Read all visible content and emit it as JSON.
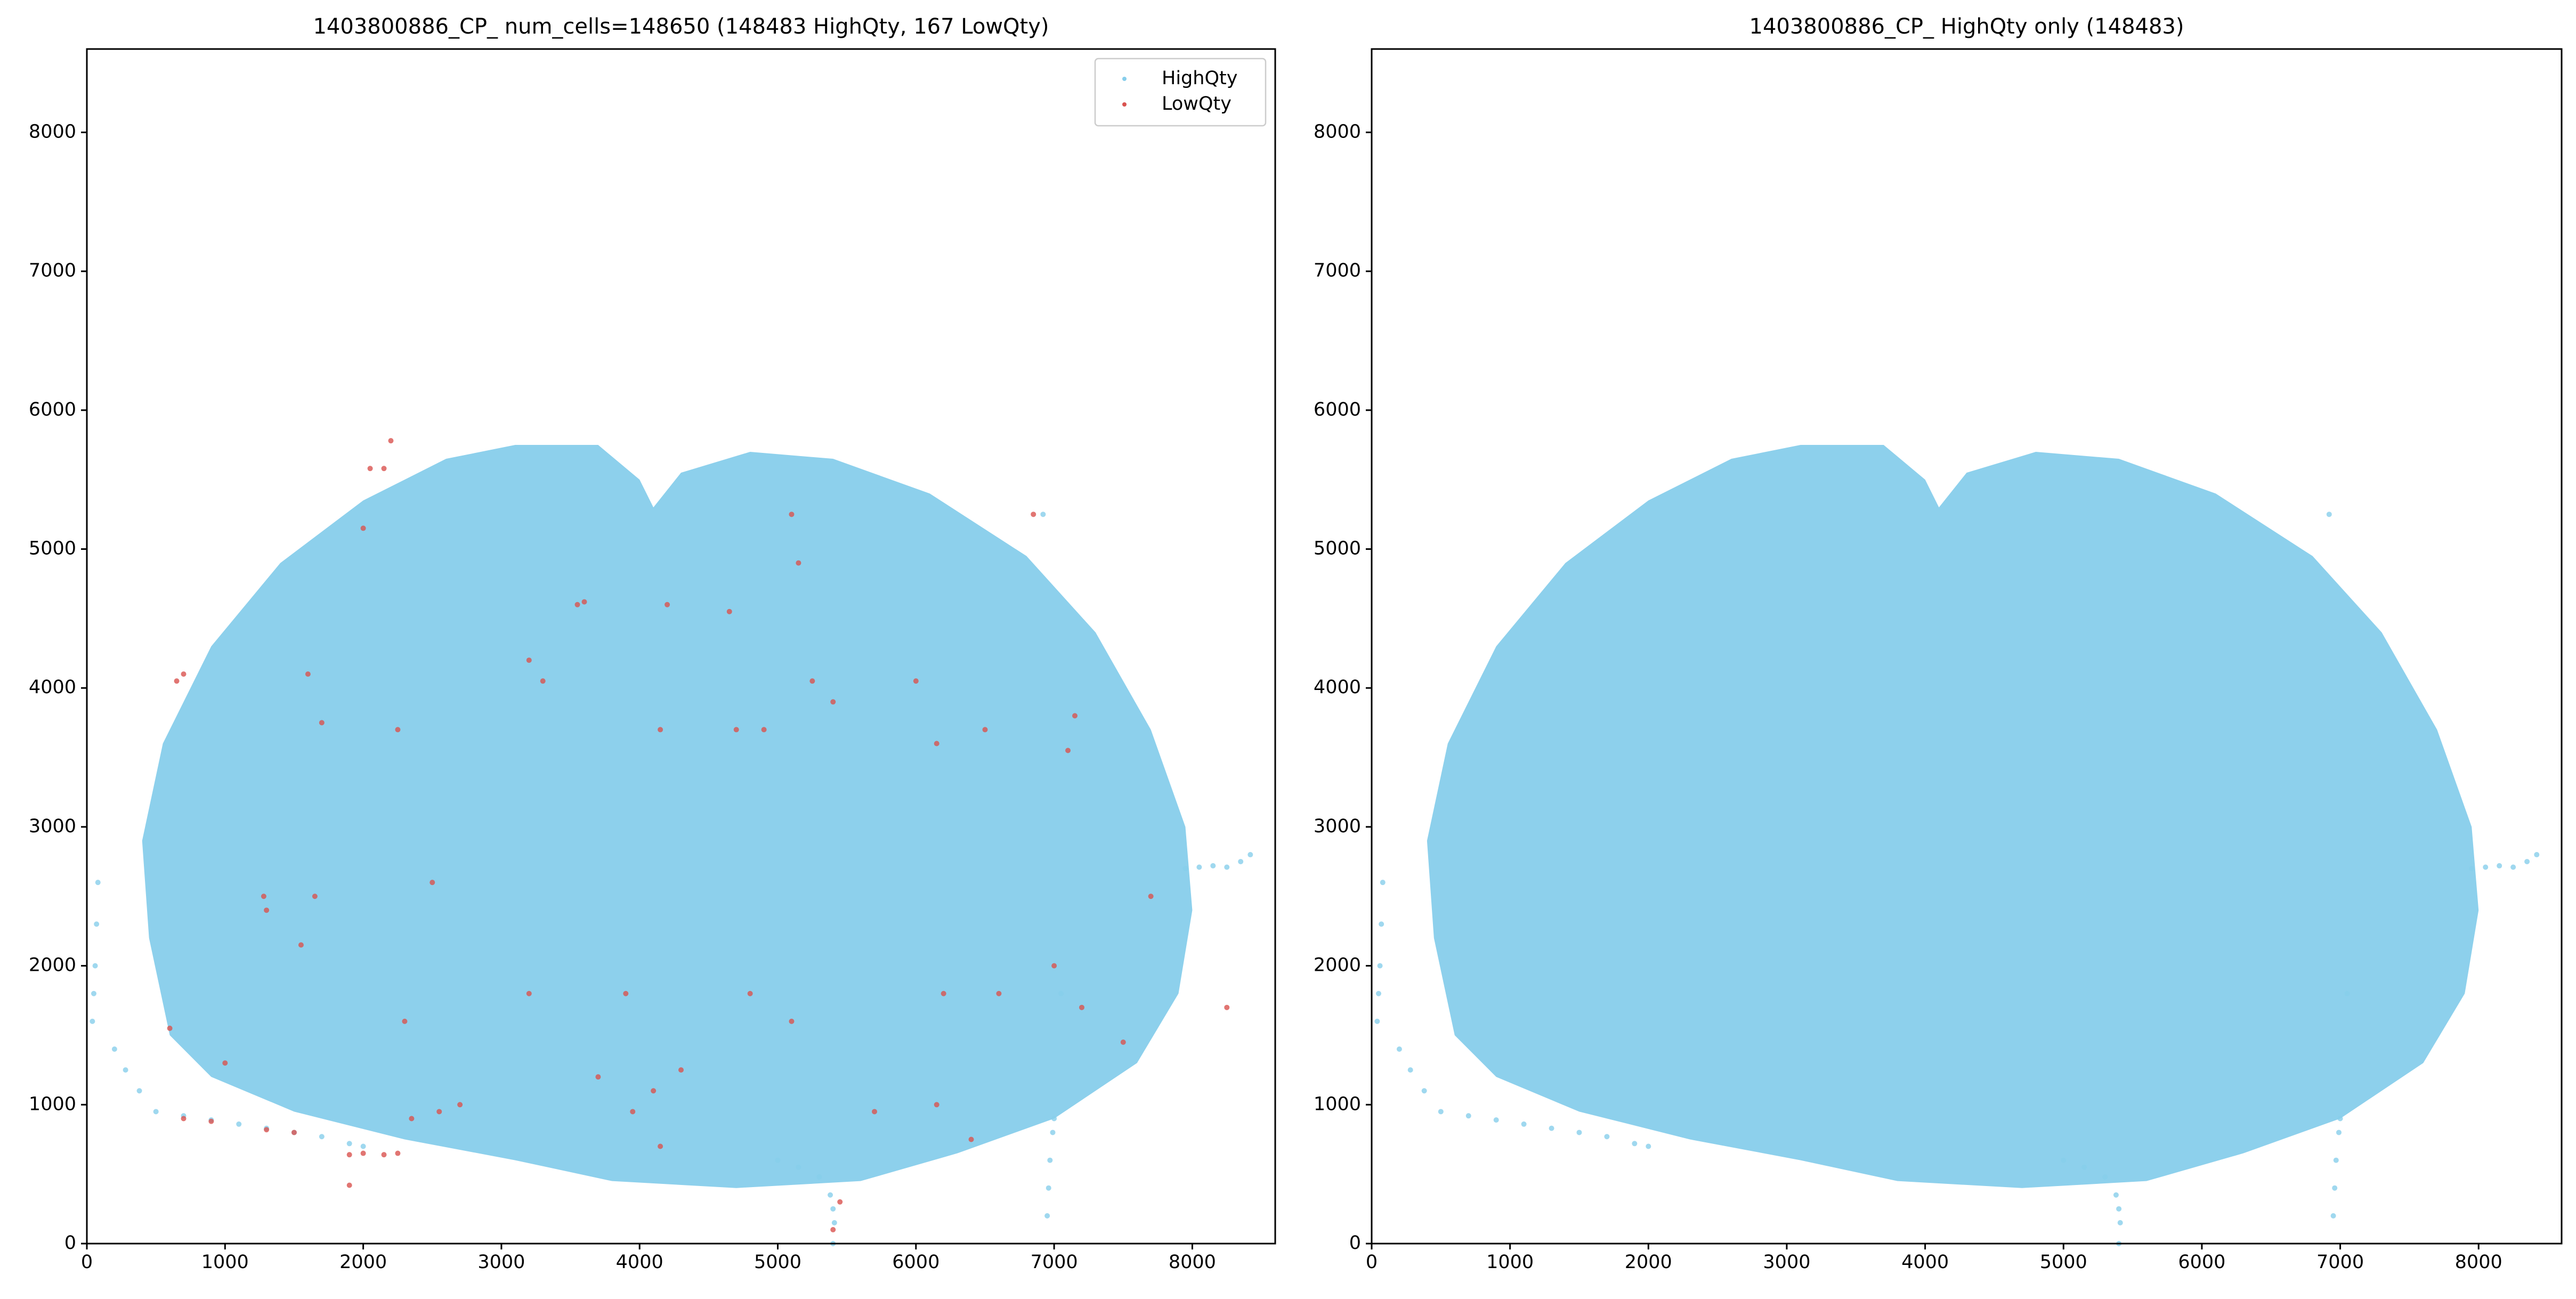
{
  "chart_data": [
    {
      "type": "scatter",
      "title": "1403800886_CP_ num_cells=148650 (148483 HighQty, 167 LowQty)",
      "xlim": [
        0,
        8600
      ],
      "ylim": [
        0,
        8600
      ],
      "xticks": [
        0,
        1000,
        2000,
        3000,
        4000,
        5000,
        6000,
        7000,
        8000
      ],
      "yticks": [
        0,
        1000,
        2000,
        3000,
        4000,
        5000,
        6000,
        7000,
        8000
      ],
      "legend": "upper right",
      "series": [
        {
          "name": "HighQty",
          "color": "#87ceeb",
          "hull": {
            "x": [
              600,
              450,
              400,
              550,
              900,
              1400,
              2000,
              2600,
              3100,
              3700,
              4000,
              4100,
              4300,
              4800,
              5400,
              6100,
              6800,
              7300,
              7700,
              7950,
              8000,
              7900,
              7600,
              7000,
              6300,
              5600,
              4700,
              3800,
              3100,
              2300,
              1500,
              900
            ],
            "y": [
              1500,
              2200,
              2900,
              3600,
              4300,
              4900,
              5350,
              5650,
              5750,
              5750,
              5500,
              5300,
              5550,
              5700,
              5650,
              5400,
              4950,
              4400,
              3700,
              3000,
              2400,
              1800,
              1300,
              900,
              650,
              450,
              400,
              450,
              600,
              750,
              950,
              1200
            ]
          },
          "x": [
            200,
            280,
            380,
            500,
            700,
            900,
            1100,
            1300,
            1500,
            1700,
            1900,
            2000,
            80,
            70,
            60,
            50,
            40,
            5000,
            5150,
            5300,
            5380,
            5400,
            5410,
            5400,
            6950,
            6960,
            6970,
            6990,
            7000,
            7950,
            8050,
            8150,
            8250,
            8350,
            8420,
            7050,
            6920
          ],
          "y": [
            1400,
            1250,
            1100,
            950,
            920,
            890,
            860,
            830,
            800,
            770,
            720,
            700,
            2600,
            2300,
            2000,
            1800,
            1600,
            600,
            550,
            480,
            350,
            250,
            150,
            0,
            200,
            400,
            600,
            800,
            900,
            2700,
            2710,
            2720,
            2710,
            2750,
            2800,
            1800,
            5250
          ]
        },
        {
          "name": "LowQty",
          "color": "#d9534f",
          "x": [
            2200,
            2050,
            2150,
            2000,
            6850,
            3550,
            3600,
            4200,
            4650,
            5150,
            5100,
            650,
            700,
            3300,
            3200,
            1600,
            1700,
            2250,
            4150,
            4700,
            4900,
            5250,
            5400,
            6000,
            6500,
            7100,
            7150,
            6150,
            1300,
            1280,
            1550,
            1650,
            2500,
            3200,
            3900,
            4800,
            5100,
            6200,
            6600,
            7000,
            7200,
            8250,
            2300,
            3700,
            4100,
            4300,
            4150,
            3950,
            1000,
            600,
            700,
            900,
            1300,
            1500,
            1900,
            2000,
            2150,
            2250,
            2350,
            2550,
            2700,
            1900,
            5400,
            5450,
            5700,
            6150,
            6400,
            7500,
            7700
          ],
          "y": [
            5780,
            5580,
            5580,
            5150,
            5250,
            4600,
            4620,
            4600,
            4550,
            4900,
            5250,
            4050,
            4100,
            4050,
            4200,
            4100,
            3750,
            3700,
            3700,
            3700,
            3700,
            4050,
            3900,
            4050,
            3700,
            3550,
            3800,
            3600,
            2400,
            2500,
            2150,
            2500,
            2600,
            1800,
            1800,
            1800,
            1600,
            1800,
            1800,
            2000,
            1700,
            1700,
            1600,
            1200,
            1100,
            1250,
            700,
            950,
            1300,
            1550,
            900,
            880,
            820,
            800,
            640,
            650,
            640,
            650,
            900,
            950,
            1000,
            420,
            100,
            300,
            950,
            1000,
            750,
            1450,
            2500
          ]
        }
      ]
    },
    {
      "type": "scatter",
      "title": "1403800886_CP_ HighQty only (148483)",
      "xlim": [
        0,
        8600
      ],
      "ylim": [
        0,
        8600
      ],
      "xticks": [
        0,
        1000,
        2000,
        3000,
        4000,
        5000,
        6000,
        7000,
        8000
      ],
      "yticks": [
        0,
        1000,
        2000,
        3000,
        4000,
        5000,
        6000,
        7000,
        8000
      ],
      "series": [
        {
          "color": "#87ceeb",
          "hull": {
            "x": [
              600,
              450,
              400,
              550,
              900,
              1400,
              2000,
              2600,
              3100,
              3700,
              4000,
              4100,
              4300,
              4800,
              5400,
              6100,
              6800,
              7300,
              7700,
              7950,
              8000,
              7900,
              7600,
              7000,
              6300,
              5600,
              4700,
              3800,
              3100,
              2300,
              1500,
              900
            ],
            "y": [
              1500,
              2200,
              2900,
              3600,
              4300,
              4900,
              5350,
              5650,
              5750,
              5750,
              5500,
              5300,
              5550,
              5700,
              5650,
              5400,
              4950,
              4400,
              3700,
              3000,
              2400,
              1800,
              1300,
              900,
              650,
              450,
              400,
              450,
              600,
              750,
              950,
              1200
            ]
          },
          "x": [
            200,
            280,
            380,
            500,
            700,
            900,
            1100,
            1300,
            1500,
            1700,
            1900,
            2000,
            80,
            70,
            60,
            50,
            40,
            5000,
            5150,
            5300,
            5380,
            5400,
            5410,
            5400,
            6950,
            6960,
            6970,
            6990,
            7000,
            7950,
            8050,
            8150,
            8250,
            8350,
            8420,
            7050,
            6920
          ],
          "y": [
            1400,
            1250,
            1100,
            950,
            920,
            890,
            860,
            830,
            800,
            770,
            720,
            700,
            2600,
            2300,
            2000,
            1800,
            1600,
            600,
            550,
            480,
            350,
            250,
            150,
            0,
            200,
            400,
            600,
            800,
            900,
            2700,
            2710,
            2720,
            2710,
            2750,
            2800,
            1800,
            5250
          ]
        }
      ]
    }
  ]
}
